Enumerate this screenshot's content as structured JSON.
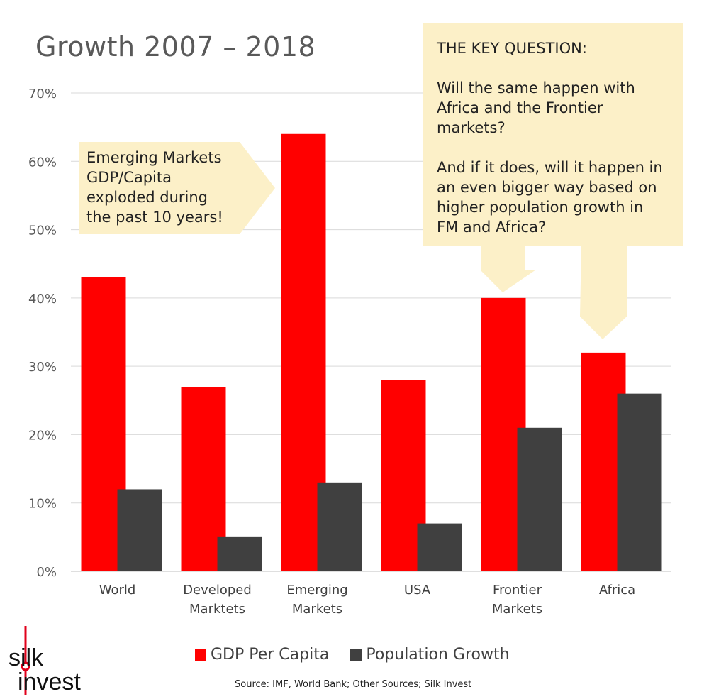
{
  "title": "Growth 2007 – 2018",
  "callouts": {
    "emerging": [
      "Emerging Markets",
      "GDP/Capita",
      "exploded during",
      "the past 10 years!"
    ],
    "key_heading": "THE KEY QUESTION:",
    "key_q1": "Will the same happen with Africa and the Frontier markets?",
    "key_q2": "And if it does, will it happen in an even bigger way based on higher population growth in FM and Africa?"
  },
  "source": "Source:  IMF, World Bank; Other Sources; Silk Invest",
  "logo": {
    "line1": "silk",
    "line2": "invest"
  },
  "colors": {
    "gdp": "#ff0000",
    "pop": "#404040",
    "callout": "#fcf0c8",
    "grid": "#d9d9d9"
  },
  "chart_data": {
    "type": "bar",
    "title": "Growth 2007 – 2018",
    "categories": [
      [
        "World"
      ],
      [
        "Developed",
        "Marktets"
      ],
      [
        "Emerging",
        "Markets"
      ],
      [
        "USA"
      ],
      [
        "Frontier",
        "Markets"
      ],
      [
        "Africa"
      ]
    ],
    "series": [
      {
        "name": "GDP Per Capita",
        "values": [
          43,
          27,
          64,
          28,
          40,
          32
        ]
      },
      {
        "name": "Population Growth",
        "values": [
          12,
          5,
          13,
          7,
          21,
          26
        ]
      }
    ],
    "ylim": [
      0,
      70
    ],
    "yticks": [
      0,
      10,
      20,
      30,
      40,
      50,
      60,
      70
    ],
    "ytick_labels": [
      "0%",
      "10%",
      "20%",
      "30%",
      "40%",
      "50%",
      "60%",
      "70%"
    ],
    "xlabel": "",
    "ylabel": "",
    "legend": "bottom",
    "grid": true
  }
}
